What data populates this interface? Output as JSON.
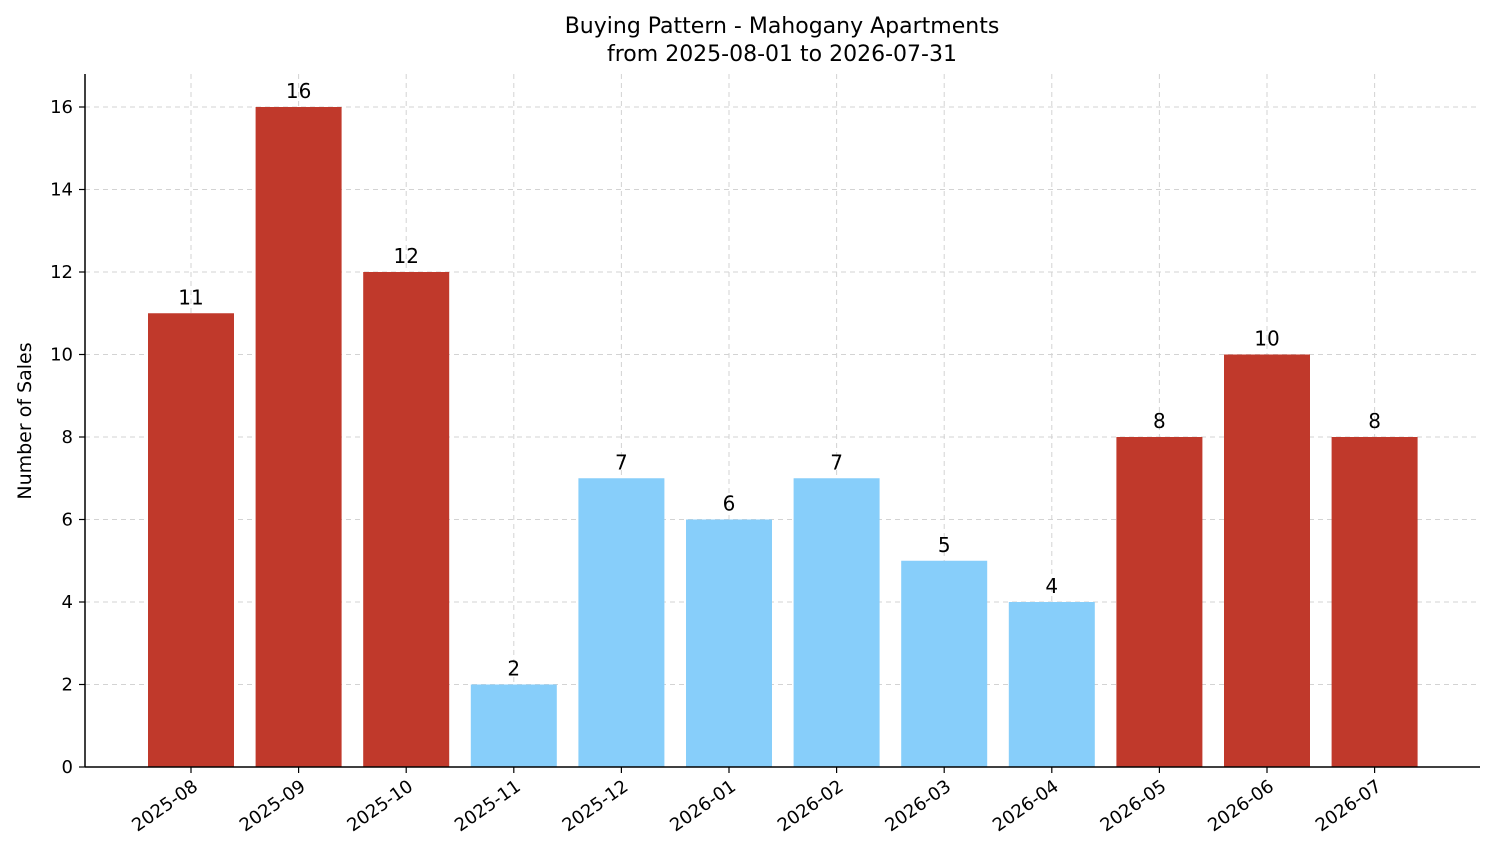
{
  "chart_data": {
    "type": "bar",
    "title": "Buying Pattern - Mahogany Apartments",
    "subtitle": "from 2025-08-01 to 2026-07-31",
    "xlabel": "",
    "ylabel": "Number of Sales",
    "categories": [
      "2025-08",
      "2025-09",
      "2025-10",
      "2025-11",
      "2025-12",
      "2026-01",
      "2026-02",
      "2026-03",
      "2026-04",
      "2026-05",
      "2026-06",
      "2026-07"
    ],
    "values": [
      11,
      16,
      12,
      2,
      7,
      6,
      7,
      5,
      4,
      8,
      10,
      8
    ],
    "bar_colors": [
      "#c0392b",
      "#c0392b",
      "#c0392b",
      "#87cefa",
      "#87cefa",
      "#87cefa",
      "#87cefa",
      "#87cefa",
      "#87cefa",
      "#c0392b",
      "#c0392b",
      "#c0392b"
    ],
    "ylim": [
      0,
      16.8
    ],
    "yticks": [
      0,
      2,
      4,
      6,
      8,
      10,
      12,
      14,
      16
    ],
    "grid": true,
    "legend": "none"
  }
}
